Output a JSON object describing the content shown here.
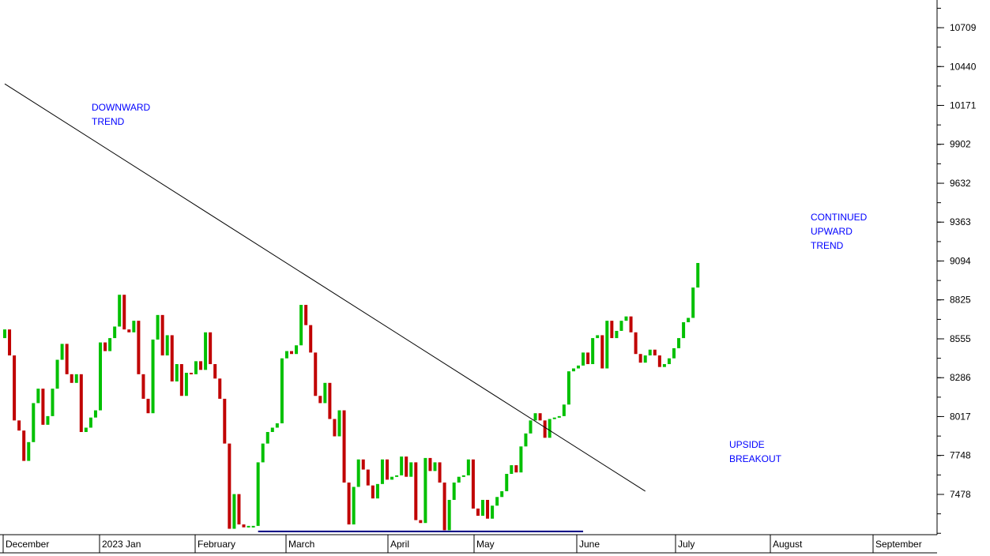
{
  "chart_data": {
    "type": "candlestick",
    "title": "",
    "xlabel": "",
    "ylabel": "",
    "ylim": [
      7210,
      10980
    ],
    "y_ticks": [
      7478,
      7748,
      8017,
      8286,
      8555,
      8825,
      9094,
      9363,
      9632,
      9902,
      10171,
      10440,
      10709
    ],
    "y_tick_labels": [
      "7478",
      "7748",
      "8017",
      "8286",
      "8555",
      "8825",
      "9094",
      "9363",
      "9632",
      "9902",
      "10171",
      "10440",
      "10709"
    ],
    "x_tick_labels": [
      "December",
      "2023 Jan",
      "February",
      "March",
      "April",
      "May",
      "June",
      "July",
      "August",
      "September"
    ],
    "up_color": "#00c000",
    "down_color": "#c00000",
    "trendline": {
      "start": [
        0,
        10320
      ],
      "end": [
        134,
        7500
      ]
    },
    "support_line": {
      "start": [
        53,
        7222
      ],
      "end": [
        121,
        7222
      ],
      "color": "#000080"
    },
    "annotations": [
      {
        "lines": [
          "DOWNWARD",
          "TREND"
        ],
        "color": "#0000ff"
      },
      {
        "lines": [
          "UPSIDE",
          "BREAKOUT"
        ],
        "color": "#0000ff"
      },
      {
        "lines": [
          "CONTINUED",
          "UPWARD",
          "TREND"
        ],
        "color": "#0000ff"
      }
    ],
    "bars": [
      [
        8560,
        8620,
        8560,
        8620
      ],
      [
        8620,
        8620,
        8440,
        8440
      ],
      [
        8440,
        8440,
        7990,
        7990
      ],
      [
        7990,
        7990,
        7920,
        7920
      ],
      [
        7920,
        7920,
        7710,
        7710
      ],
      [
        7710,
        7840,
        7710,
        7840
      ],
      [
        7840,
        8110,
        7840,
        8110
      ],
      [
        8110,
        8210,
        8110,
        8210
      ],
      [
        8210,
        8210,
        7960,
        7960
      ],
      [
        7960,
        8020,
        7960,
        8020
      ],
      [
        8020,
        8210,
        8020,
        8210
      ],
      [
        8210,
        8410,
        8210,
        8410
      ],
      [
        8410,
        8520,
        8410,
        8520
      ],
      [
        8520,
        8520,
        8310,
        8310
      ],
      [
        8310,
        8310,
        8250,
        8250
      ],
      [
        8250,
        8310,
        8250,
        8310
      ],
      [
        8310,
        8310,
        7910,
        7910
      ],
      [
        7910,
        7940,
        7910,
        7940
      ],
      [
        7940,
        8010,
        7940,
        8010
      ],
      [
        8010,
        8060,
        8010,
        8060
      ],
      [
        8060,
        8530,
        8060,
        8530
      ],
      [
        8530,
        8530,
        8470,
        8470
      ],
      [
        8470,
        8560,
        8470,
        8560
      ],
      [
        8560,
        8640,
        8560,
        8640
      ],
      [
        8640,
        8860,
        8640,
        8860
      ],
      [
        8860,
        8860,
        8620,
        8620
      ],
      [
        8620,
        8620,
        8600,
        8600
      ],
      [
        8600,
        8680,
        8600,
        8680
      ],
      [
        8680,
        8680,
        8310,
        8310
      ],
      [
        8310,
        8310,
        8140,
        8140
      ],
      [
        8140,
        8140,
        8040,
        8040
      ],
      [
        8040,
        8550,
        8040,
        8550
      ],
      [
        8550,
        8720,
        8550,
        8720
      ],
      [
        8720,
        8720,
        8440,
        8440
      ],
      [
        8440,
        8580,
        8440,
        8580
      ],
      [
        8580,
        8580,
        8260,
        8260
      ],
      [
        8260,
        8380,
        8260,
        8380
      ],
      [
        8380,
        8380,
        8160,
        8160
      ],
      [
        8160,
        8320,
        8160,
        8320
      ],
      [
        8320,
        8320,
        8310,
        8310
      ],
      [
        8310,
        8400,
        8310,
        8400
      ],
      [
        8400,
        8400,
        8340,
        8340
      ],
      [
        8340,
        8600,
        8340,
        8600
      ],
      [
        8600,
        8600,
        8380,
        8380
      ],
      [
        8380,
        8380,
        8280,
        8280
      ],
      [
        8280,
        8280,
        8140,
        8140
      ],
      [
        8140,
        8140,
        7830,
        7830
      ],
      [
        7830,
        7830,
        7240,
        7240
      ],
      [
        7240,
        7480,
        7240,
        7480
      ],
      [
        7480,
        7480,
        7270,
        7270
      ],
      [
        7270,
        7280,
        7240,
        7250
      ],
      [
        7250,
        7270,
        7240,
        7260
      ],
      [
        7260,
        7270,
        7240,
        7260
      ],
      [
        7260,
        7700,
        7260,
        7700
      ],
      [
        7700,
        7830,
        7700,
        7830
      ],
      [
        7830,
        7910,
        7830,
        7910
      ],
      [
        7910,
        7940,
        7910,
        7940
      ],
      [
        7940,
        7970,
        7940,
        7970
      ],
      [
        7970,
        8420,
        7970,
        8420
      ],
      [
        8420,
        8470,
        8420,
        8470
      ],
      [
        8470,
        8480,
        8450,
        8450
      ],
      [
        8450,
        8510,
        8450,
        8510
      ],
      [
        8510,
        8790,
        8510,
        8790
      ],
      [
        8790,
        8790,
        8650,
        8650
      ],
      [
        8650,
        8650,
        8460,
        8460
      ],
      [
        8460,
        8460,
        8160,
        8160
      ],
      [
        8160,
        8160,
        8110,
        8110
      ],
      [
        8110,
        8250,
        8110,
        8250
      ],
      [
        8250,
        8250,
        8000,
        8000
      ],
      [
        8000,
        8000,
        7880,
        7880
      ],
      [
        7880,
        8060,
        7880,
        8060
      ],
      [
        8060,
        8060,
        7560,
        7560
      ],
      [
        7560,
        7560,
        7270,
        7270
      ],
      [
        7270,
        7530,
        7270,
        7530
      ],
      [
        7530,
        7720,
        7530,
        7720
      ],
      [
        7720,
        7720,
        7650,
        7650
      ],
      [
        7650,
        7650,
        7540,
        7540
      ],
      [
        7540,
        7540,
        7450,
        7450
      ],
      [
        7450,
        7550,
        7450,
        7550
      ],
      [
        7550,
        7720,
        7550,
        7720
      ],
      [
        7720,
        7720,
        7580,
        7580
      ],
      [
        7580,
        7600,
        7580,
        7600
      ],
      [
        7600,
        7610,
        7600,
        7610
      ],
      [
        7610,
        7740,
        7610,
        7740
      ],
      [
        7740,
        7740,
        7600,
        7600
      ],
      [
        7600,
        7700,
        7600,
        7700
      ],
      [
        7700,
        7700,
        7300,
        7300
      ],
      [
        7300,
        7300,
        7280,
        7280
      ],
      [
        7280,
        7730,
        7280,
        7730
      ],
      [
        7730,
        7730,
        7640,
        7640
      ],
      [
        7640,
        7700,
        7640,
        7700
      ],
      [
        7700,
        7700,
        7560,
        7560
      ],
      [
        7560,
        7560,
        7230,
        7230
      ],
      [
        7230,
        7440,
        7230,
        7440
      ],
      [
        7440,
        7560,
        7440,
        7560
      ],
      [
        7560,
        7600,
        7560,
        7600
      ],
      [
        7600,
        7610,
        7600,
        7610
      ],
      [
        7610,
        7720,
        7610,
        7720
      ],
      [
        7720,
        7720,
        7380,
        7380
      ],
      [
        7380,
        7380,
        7330,
        7330
      ],
      [
        7330,
        7440,
        7330,
        7440
      ],
      [
        7440,
        7440,
        7310,
        7310
      ],
      [
        7310,
        7400,
        7310,
        7400
      ],
      [
        7400,
        7460,
        7400,
        7460
      ],
      [
        7460,
        7500,
        7460,
        7500
      ],
      [
        7500,
        7620,
        7500,
        7620
      ],
      [
        7620,
        7680,
        7620,
        7680
      ],
      [
        7680,
        7680,
        7630,
        7630
      ],
      [
        7630,
        7810,
        7630,
        7810
      ],
      [
        7810,
        7900,
        7810,
        7900
      ],
      [
        7900,
        7990,
        7900,
        7990
      ],
      [
        7990,
        8040,
        7990,
        8040
      ],
      [
        8040,
        8040,
        7990,
        7990
      ],
      [
        7990,
        7990,
        7870,
        7870
      ],
      [
        7870,
        8000,
        7870,
        8000
      ],
      [
        8000,
        8010,
        8000,
        8010
      ],
      [
        8010,
        8020,
        8010,
        8020
      ],
      [
        8020,
        8100,
        8020,
        8100
      ],
      [
        8100,
        8330,
        8100,
        8330
      ],
      [
        8330,
        8350,
        8330,
        8350
      ],
      [
        8350,
        8370,
        8350,
        8370
      ],
      [
        8370,
        8460,
        8370,
        8460
      ],
      [
        8460,
        8460,
        8380,
        8380
      ],
      [
        8380,
        8560,
        8380,
        8560
      ],
      [
        8560,
        8580,
        8560,
        8580
      ],
      [
        8580,
        8580,
        8350,
        8350
      ],
      [
        8350,
        8680,
        8350,
        8680
      ],
      [
        8680,
        8680,
        8560,
        8560
      ],
      [
        8560,
        8610,
        8560,
        8610
      ],
      [
        8610,
        8680,
        8610,
        8680
      ],
      [
        8680,
        8710,
        8680,
        8710
      ],
      [
        8710,
        8710,
        8600,
        8600
      ],
      [
        8600,
        8600,
        8450,
        8450
      ],
      [
        8450,
        8450,
        8390,
        8390
      ],
      [
        8390,
        8440,
        8390,
        8440
      ],
      [
        8440,
        8480,
        8440,
        8480
      ],
      [
        8480,
        8480,
        8440,
        8440
      ],
      [
        8440,
        8440,
        8360,
        8360
      ],
      [
        8360,
        8380,
        8360,
        8380
      ],
      [
        8380,
        8420,
        8380,
        8420
      ],
      [
        8420,
        8490,
        8420,
        8490
      ],
      [
        8490,
        8560,
        8490,
        8560
      ],
      [
        8560,
        8670,
        8560,
        8670
      ],
      [
        8670,
        8700,
        8670,
        8700
      ],
      [
        8700,
        8910,
        8700,
        8910
      ],
      [
        8910,
        9080,
        8910,
        9080
      ]
    ]
  }
}
